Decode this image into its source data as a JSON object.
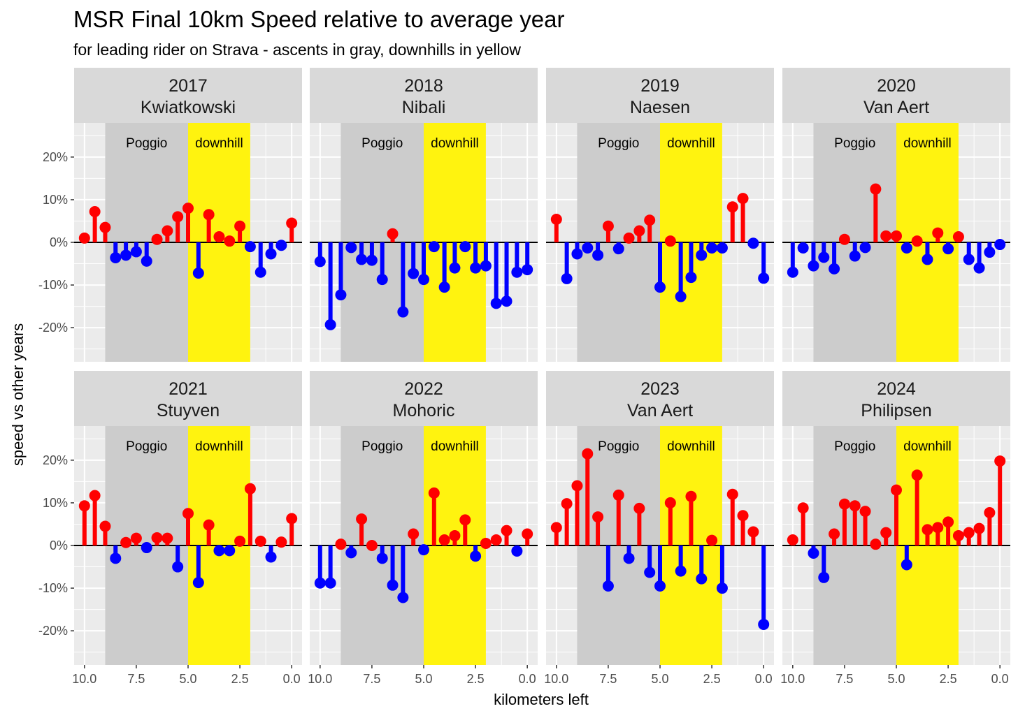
{
  "chart_data": {
    "type": "lollipop",
    "title": "MSR Final 10km Speed relative to average year",
    "subtitle": "for leading rider on Strava - ascents in gray, downhills in yellow",
    "xlabel": "kilometers left",
    "ylabel": "speed vs other years",
    "x_reversed": true,
    "xlim": [
      10.5,
      -0.5
    ],
    "ylim": [
      -0.28,
      0.28
    ],
    "x_ticks": [
      10,
      7.5,
      5,
      2.5,
      0
    ],
    "x_tick_labels": [
      "10.0",
      "7.5",
      "5.0",
      "2.5",
      "0.0"
    ],
    "y_ticks": [
      -0.2,
      -0.1,
      0,
      0.1,
      0.2
    ],
    "y_tick_labels": [
      "-20%",
      "-10%",
      "0%",
      "10%",
      "20%"
    ],
    "regions": [
      {
        "label": "Poggio",
        "from": 9.0,
        "to": 5.0,
        "color": "#cccccc"
      },
      {
        "label": "downhill",
        "from": 5.0,
        "to": 2.0,
        "color": "#fff30f"
      }
    ],
    "colors": {
      "positive": "#ff0000",
      "negative": "#0000ff",
      "panel_bg": "#ebebeb",
      "strip_bg": "#d9d9d9",
      "zero_line": "#000000"
    },
    "x": [
      10.0,
      9.5,
      9.0,
      8.5,
      8.0,
      7.5,
      7.0,
      6.5,
      6.0,
      5.5,
      5.0,
      4.5,
      4.0,
      3.5,
      3.0,
      2.5,
      2.0,
      1.5,
      1.0,
      0.5,
      0.0
    ],
    "panels": [
      {
        "year": "2017",
        "rider": "Kwiatkowski",
        "values": [
          0.01,
          0.072,
          0.035,
          -0.036,
          -0.03,
          -0.022,
          -0.044,
          0.007,
          0.027,
          0.06,
          0.08,
          -0.072,
          0.065,
          0.013,
          0.003,
          0.038,
          -0.01,
          -0.07,
          -0.027,
          -0.007,
          0.045
        ]
      },
      {
        "year": "2018",
        "rider": "Nibali",
        "values": [
          -0.045,
          -0.193,
          -0.123,
          -0.012,
          -0.04,
          -0.042,
          -0.087,
          0.02,
          -0.163,
          -0.073,
          -0.087,
          -0.01,
          -0.105,
          -0.06,
          -0.01,
          -0.06,
          -0.055,
          -0.143,
          -0.138,
          -0.07,
          -0.064
        ]
      },
      {
        "year": "2019",
        "rider": "Naesen",
        "values": [
          0.054,
          -0.085,
          -0.027,
          -0.013,
          -0.03,
          0.038,
          -0.015,
          0.01,
          0.027,
          0.052,
          -0.105,
          0.003,
          -0.127,
          -0.082,
          -0.03,
          -0.013,
          -0.013,
          0.083,
          0.103,
          -0.002,
          -0.084
        ]
      },
      {
        "year": "2020",
        "rider": "Van Aert",
        "values": [
          -0.07,
          -0.013,
          -0.055,
          -0.035,
          -0.062,
          0.007,
          -0.032,
          -0.012,
          0.125,
          0.015,
          0.015,
          -0.013,
          0.003,
          -0.04,
          0.022,
          -0.015,
          0.013,
          -0.04,
          -0.06,
          -0.023,
          -0.005
        ]
      },
      {
        "year": "2021",
        "rider": "Stuyven",
        "values": [
          0.093,
          0.117,
          0.045,
          -0.03,
          0.007,
          0.017,
          -0.005,
          0.018,
          0.017,
          -0.05,
          0.075,
          -0.087,
          0.048,
          -0.012,
          -0.012,
          0.01,
          0.133,
          0.01,
          -0.027,
          0.008,
          0.063
        ]
      },
      {
        "year": "2022",
        "rider": "Mohoric",
        "values": [
          -0.088,
          -0.088,
          0.003,
          -0.017,
          0.062,
          0.0,
          -0.03,
          -0.093,
          -0.122,
          0.027,
          -0.01,
          0.123,
          0.013,
          0.023,
          0.06,
          -0.025,
          0.005,
          0.013,
          0.035,
          -0.013,
          0.027
        ]
      },
      {
        "year": "2023",
        "rider": "Van Aert",
        "values": [
          0.042,
          0.098,
          0.14,
          0.215,
          0.067,
          -0.095,
          0.118,
          -0.03,
          0.087,
          -0.063,
          -0.095,
          0.1,
          -0.06,
          0.115,
          -0.078,
          0.012,
          -0.1,
          0.12,
          0.07,
          0.032,
          -0.185
        ]
      },
      {
        "year": "2024",
        "rider": "Philipsen",
        "values": [
          0.013,
          0.088,
          -0.018,
          -0.075,
          0.027,
          0.097,
          0.093,
          0.08,
          0.003,
          0.03,
          0.13,
          -0.045,
          0.165,
          0.037,
          0.042,
          0.055,
          0.023,
          0.03,
          0.04,
          0.077,
          0.198
        ]
      }
    ]
  }
}
